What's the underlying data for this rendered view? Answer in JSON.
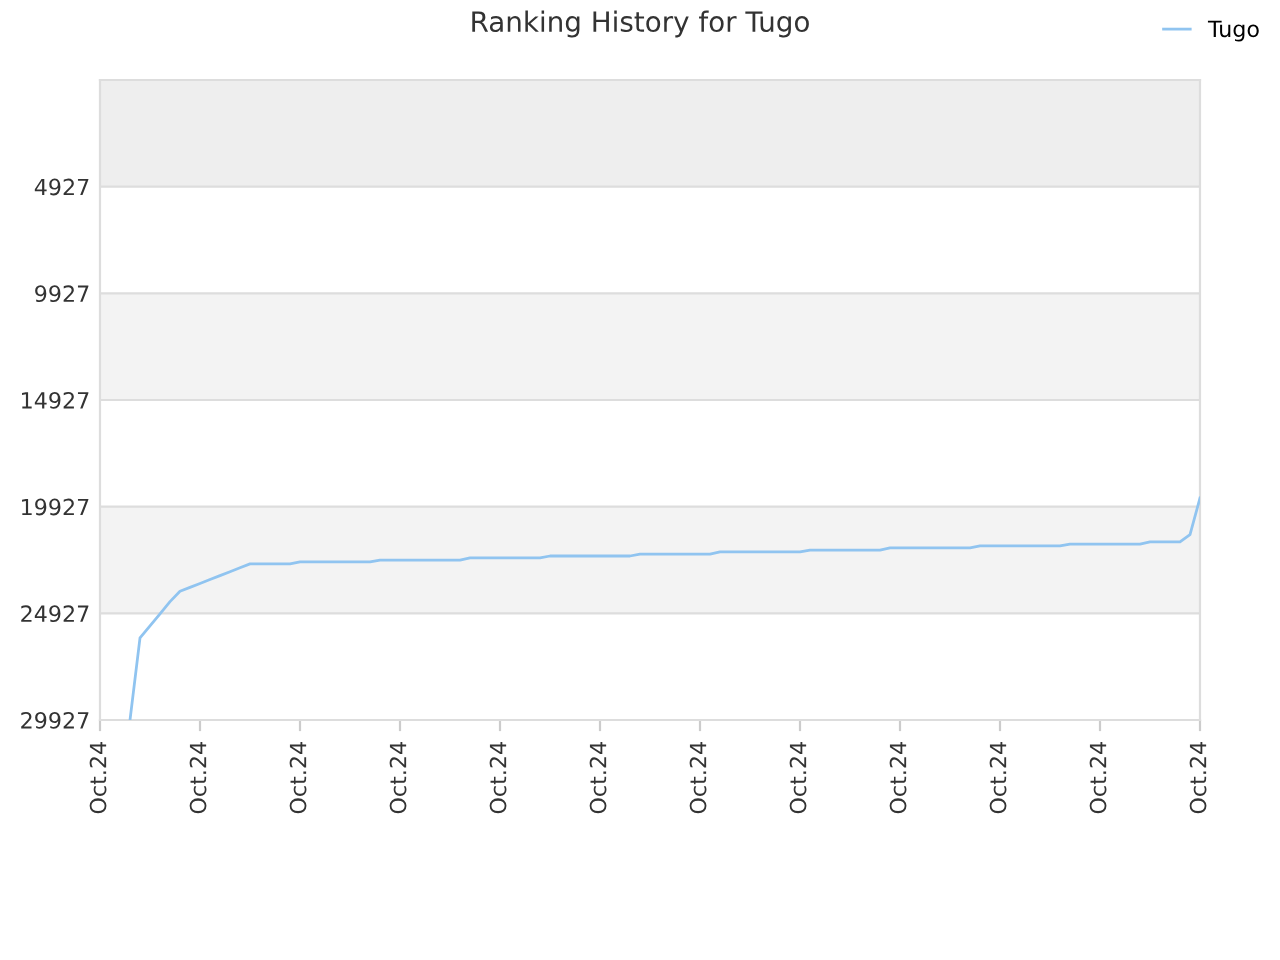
{
  "chart_data": {
    "type": "line",
    "title": "Ranking History for Tugo",
    "categories": [
      "Oct.24",
      null,
      null,
      null,
      null,
      null,
      null,
      null,
      null,
      null,
      "Oct.24",
      null,
      null,
      null,
      null,
      null,
      null,
      null,
      null,
      null,
      "Oct.24",
      null,
      null,
      null,
      null,
      null,
      null,
      null,
      null,
      null,
      "Oct.24",
      null,
      null,
      null,
      null,
      null,
      null,
      null,
      null,
      null,
      "Oct.24",
      null,
      null,
      null,
      null,
      null,
      null,
      null,
      null,
      null,
      "Oct.24",
      null,
      null,
      null,
      null,
      null,
      null,
      null,
      null,
      null,
      "Oct.24",
      null,
      null,
      null,
      null,
      null,
      null,
      null,
      null,
      null,
      "Oct.24",
      null,
      null,
      null,
      null,
      null,
      null,
      null,
      null,
      null,
      "Oct.24",
      null,
      null,
      null,
      null,
      null,
      null,
      null,
      null,
      null,
      "Oct.24",
      null,
      null,
      null,
      null,
      null,
      null,
      null,
      null,
      null,
      "Oct.24",
      null,
      null,
      null,
      null,
      null,
      null,
      null,
      null,
      null,
      "Oct.24"
    ],
    "ylim": [
      29927,
      -73
    ],
    "yticks": [
      4927,
      9927,
      14927,
      19927,
      24927,
      29927
    ],
    "grid": "y",
    "legend": "top right",
    "marker": "none",
    "line_style": "solid",
    "bands": [
      {
        "axis": "y",
        "from": -73,
        "to": 4927,
        "color": "#eeeeee"
      },
      {
        "axis": "y",
        "from": 9927,
        "to": 14927,
        "color": "#f3f3f3"
      },
      {
        "axis": "y",
        "from": 19927,
        "to": 24927,
        "color": "#f3f3f3"
      }
    ],
    "series": [
      {
        "name": "Tugo",
        "color": "#90c4f0",
        "values": [
          null,
          null,
          null,
          29927,
          26080,
          25510,
          24950,
          24380,
          23890,
          23710,
          23530,
          23340,
          23160,
          22980,
          22790,
          22610,
          22610,
          22610,
          22610,
          22610,
          22520,
          22520,
          22520,
          22520,
          22520,
          22520,
          22520,
          22520,
          22430,
          22430,
          22430,
          22430,
          22430,
          22430,
          22430,
          22430,
          22430,
          22330,
          22330,
          22330,
          22330,
          22330,
          22330,
          22330,
          22330,
          22240,
          22240,
          22240,
          22240,
          22240,
          22240,
          22240,
          22240,
          22240,
          22150,
          22150,
          22150,
          22150,
          22150,
          22150,
          22150,
          22150,
          22050,
          22050,
          22050,
          22050,
          22050,
          22050,
          22050,
          22050,
          22050,
          21960,
          21960,
          21960,
          21960,
          21960,
          21960,
          21960,
          21960,
          21860,
          21860,
          21860,
          21860,
          21860,
          21860,
          21860,
          21860,
          21860,
          21770,
          21770,
          21770,
          21770,
          21770,
          21770,
          21770,
          21770,
          21770,
          21680,
          21680,
          21680,
          21680,
          21680,
          21680,
          21680,
          21680,
          21580,
          21580,
          21580,
          21580,
          21240,
          19520
        ]
      }
    ]
  }
}
